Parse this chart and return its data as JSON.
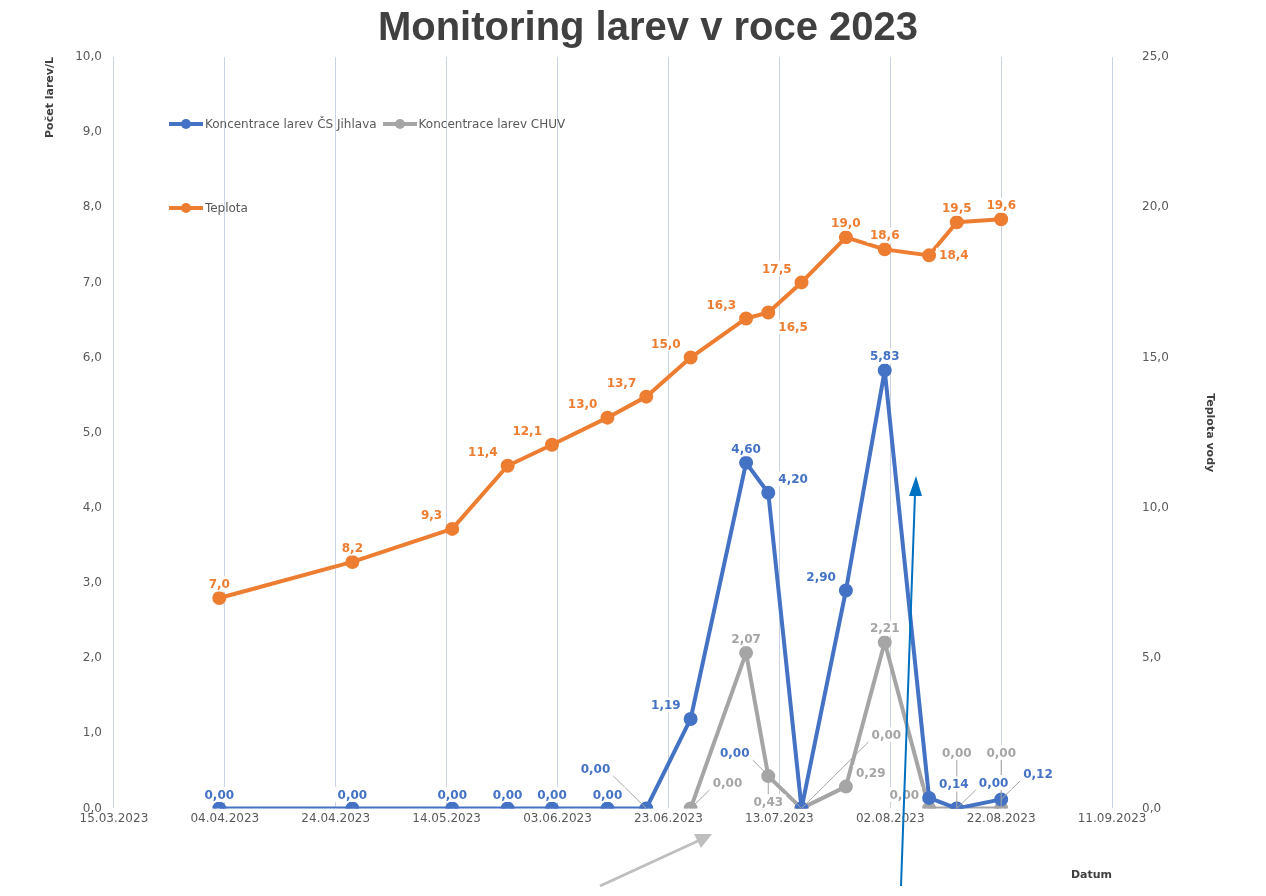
{
  "chart_data": {
    "type": "line",
    "title": "Monitoring larev v roce 2023",
    "xlabel": "Datum",
    "ylabel": "Počet larev/L",
    "y2label": "Teplota vody",
    "x": [
      "2023-04-03",
      "2023-04-27",
      "2023-05-15",
      "2023-05-25",
      "2023-06-02",
      "2023-06-12",
      "2023-06-19",
      "2023-06-27",
      "2023-07-07",
      "2023-07-11",
      "2023-07-17",
      "2023-07-25",
      "2023-08-01",
      "2023-08-09",
      "2023-08-14",
      "2023-08-22"
    ],
    "series": [
      {
        "name": "Koncentrace larev ČS Jihlava",
        "color": "#4472c4",
        "values": [
          0,
          0,
          0,
          0,
          0,
          0,
          0,
          1.19,
          4.6,
          4.2,
          0,
          2.9,
          5.83,
          0.14,
          0,
          0.12
        ],
        "value_labels": [
          "0,00",
          "0,00",
          "0,00",
          "0,00",
          "0,00",
          "0,00",
          "0,00",
          "1,19",
          "4,60",
          "4,20",
          "0,00",
          "2,90",
          "5,83",
          "0,14",
          "0,00",
          "0,12"
        ]
      },
      {
        "name": "Koncentrace larev CHUV",
        "color": "#a5a5a5",
        "values": [
          null,
          null,
          null,
          null,
          null,
          null,
          null,
          0,
          2.07,
          0.43,
          0,
          0.29,
          2.21,
          0,
          0,
          0
        ],
        "value_labels": [
          null,
          null,
          null,
          null,
          null,
          null,
          null,
          "0,00",
          "2,07",
          "0,43",
          "0,00",
          "0,29",
          "2,21",
          "0,00",
          "0,00",
          "0,00"
        ]
      },
      {
        "name": "Teplota",
        "color": "#ed7d31",
        "axis": "y2",
        "values": [
          7.0,
          8.2,
          9.3,
          11.4,
          12.1,
          13.0,
          13.7,
          15.0,
          16.3,
          16.5,
          17.5,
          19.0,
          18.6,
          18.4,
          19.5,
          19.6
        ],
        "value_labels": [
          "7,0",
          "8,2",
          "9,3",
          "11,4",
          "12,1",
          "13,0",
          "13,7",
          "15,0",
          "16,3",
          "16,5",
          "17,5",
          "19,0",
          "18,6",
          "18,4",
          "19,5",
          "19,6"
        ]
      }
    ],
    "xlim": [
      "2023-03-15",
      "2023-09-11"
    ],
    "xticks": [
      {
        "value": "2023-03-15",
        "label": "15.03.2023"
      },
      {
        "value": "2023-04-04",
        "label": "04.04.2023"
      },
      {
        "value": "2023-04-24",
        "label": "24.04.2023"
      },
      {
        "value": "2023-05-14",
        "label": "14.05.2023"
      },
      {
        "value": "2023-06-03",
        "label": "03.06.2023"
      },
      {
        "value": "2023-06-23",
        "label": "23.06.2023"
      },
      {
        "value": "2023-07-13",
        "label": "13.07.2023"
      },
      {
        "value": "2023-08-02",
        "label": "02.08.2023"
      },
      {
        "value": "2023-08-22",
        "label": "22.08.2023"
      },
      {
        "value": "2023-09-11",
        "label": "11.09.2023"
      }
    ],
    "ylim": [
      0,
      10
    ],
    "yticks": [
      {
        "value": 0,
        "label": "0,0"
      },
      {
        "value": 1,
        "label": "1,0"
      },
      {
        "value": 2,
        "label": "2,0"
      },
      {
        "value": 3,
        "label": "3,0"
      },
      {
        "value": 4,
        "label": "4,0"
      },
      {
        "value": 5,
        "label": "5,0"
      },
      {
        "value": 6,
        "label": "6,0"
      },
      {
        "value": 7,
        "label": "7,0"
      },
      {
        "value": 8,
        "label": "8,0"
      },
      {
        "value": 9,
        "label": "9,0"
      },
      {
        "value": 10,
        "label": "10,0"
      }
    ],
    "y2lim": [
      0,
      25
    ],
    "y2ticks": [
      {
        "value": 0,
        "label": "0,0"
      },
      {
        "value": 5,
        "label": "5,0"
      },
      {
        "value": 10,
        "label": "10,0"
      },
      {
        "value": 15,
        "label": "15,0"
      },
      {
        "value": 20,
        "label": "20,0"
      },
      {
        "value": 25,
        "label": "25,0"
      }
    ],
    "grid": "x",
    "legend": "top left",
    "marker": "circle",
    "line_style": "solid"
  }
}
